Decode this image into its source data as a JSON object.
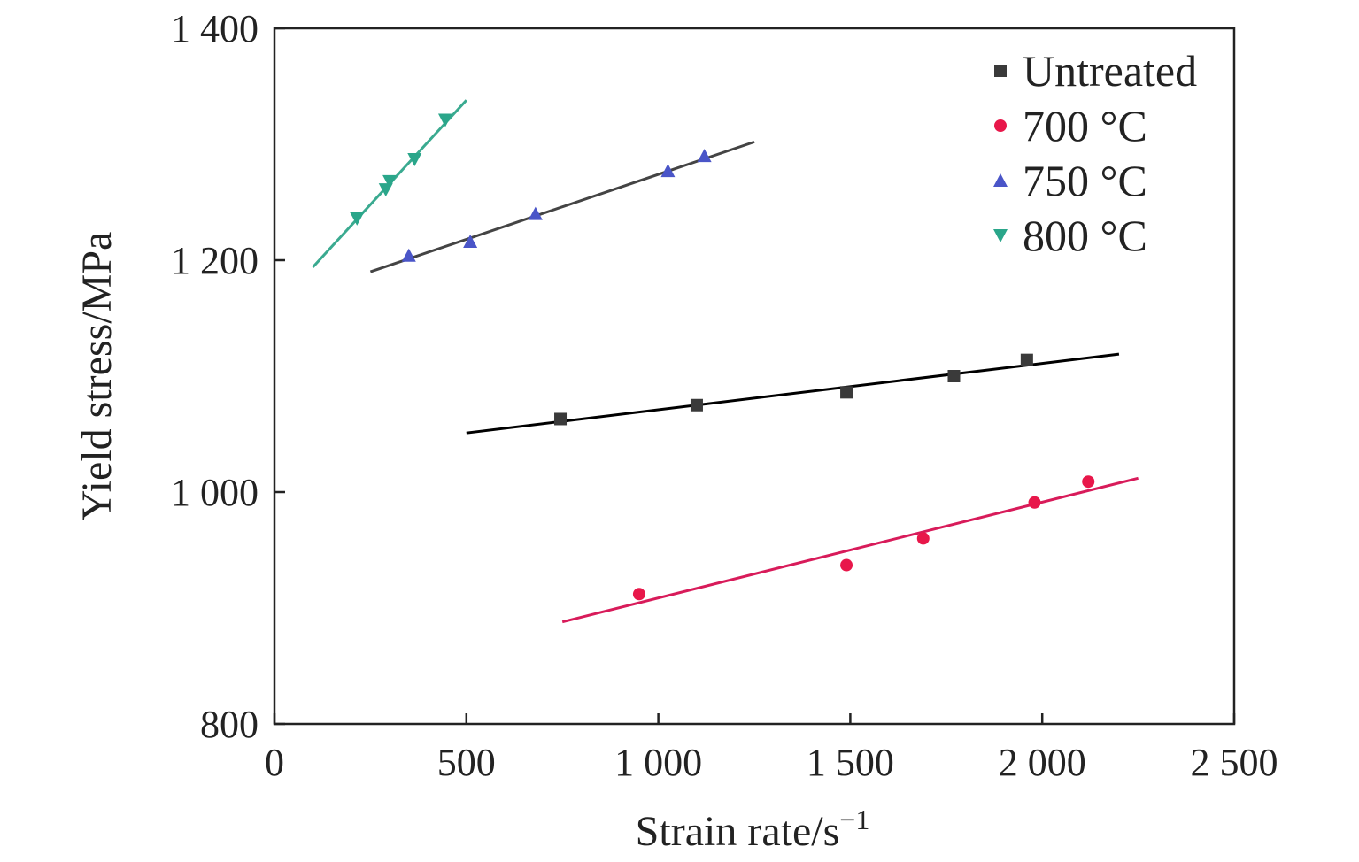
{
  "chart_data": {
    "type": "scatter",
    "title": "",
    "xlabel": "Strain rate/s",
    "xlabel_superscript": "−1",
    "ylabel": "Yield stress/MPa",
    "xlim": [
      0,
      2500
    ],
    "ylim": [
      800,
      1400
    ],
    "x_ticks": [
      0,
      500,
      1000,
      1500,
      2000,
      2500
    ],
    "x_tick_labels": [
      "0",
      "500",
      "1 000",
      "1 500",
      "2 000",
      "2 500"
    ],
    "y_ticks": [
      800,
      1000,
      1200,
      1400
    ],
    "y_tick_labels": [
      "800",
      "1 000",
      "1 200",
      "1 400"
    ],
    "grid": false,
    "legend_position": "top-right",
    "series": [
      {
        "name": "Untreated",
        "marker": "square",
        "color": "#3a3a3a",
        "line_color": "#000000",
        "x": [
          745,
          1100,
          1490,
          1770,
          1960
        ],
        "y": [
          1063,
          1075,
          1086,
          1100,
          1114
        ],
        "fit": {
          "x": [
            500,
            2200
          ],
          "y": [
            1051,
            1119
          ]
        }
      },
      {
        "name": "700 °C",
        "marker": "circle",
        "color": "#e8174a",
        "line_color": "#d81b5a",
        "x": [
          950,
          1490,
          1690,
          1980,
          2120
        ],
        "y": [
          912,
          937,
          960,
          991,
          1009
        ],
        "fit": {
          "x": [
            750,
            2250
          ],
          "y": [
            888,
            1012
          ]
        }
      },
      {
        "name": "750 °C",
        "marker": "triangle-up",
        "color": "#4a55c8",
        "line_color": "#444444",
        "x": [
          350,
          510,
          680,
          1025,
          1120
        ],
        "y": [
          1204,
          1216,
          1240,
          1277,
          1290
        ],
        "fit": {
          "x": [
            250,
            1250
          ],
          "y": [
            1190,
            1302
          ]
        }
      },
      {
        "name": "800 °C",
        "marker": "triangle-down",
        "color": "#2aa68a",
        "line_color": "#3aaa90",
        "x": [
          215,
          290,
          300,
          365,
          445
        ],
        "y": [
          1236,
          1261,
          1268,
          1287,
          1321
        ],
        "fit": {
          "x": [
            100,
            500
          ],
          "y": [
            1194,
            1338
          ]
        }
      }
    ]
  }
}
